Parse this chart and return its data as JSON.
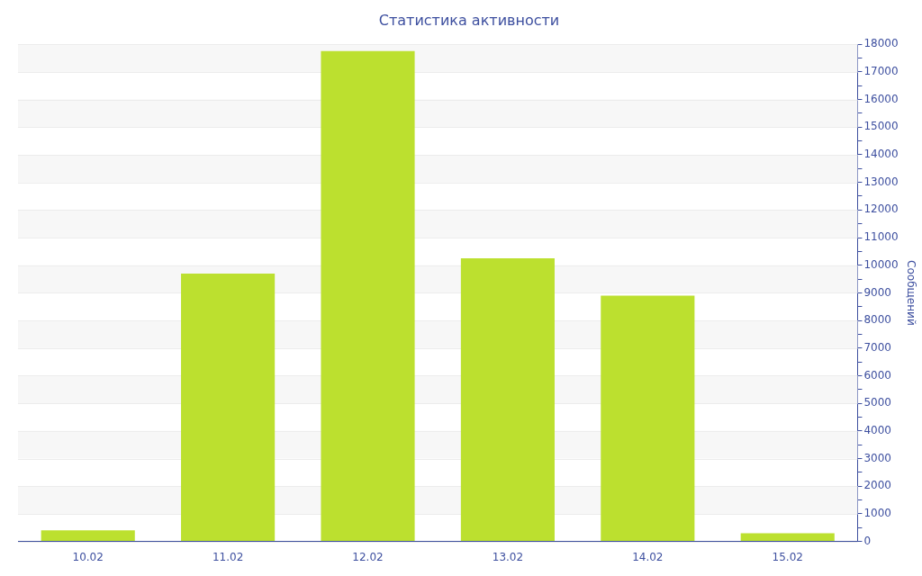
{
  "chart_data": {
    "type": "bar",
    "title": "Статистика активности",
    "ylabel": "Сообщений",
    "categories": [
      "10.02",
      "11.02",
      "12.02",
      "13.02",
      "14.02",
      "15.02"
    ],
    "values": [
      400,
      9700,
      17750,
      10250,
      8900,
      300
    ],
    "color": "#bce02f",
    "ylim": [
      0,
      18000
    ],
    "yticks": [
      0,
      {
        "value": 500,
        "label": null
      },
      1000,
      {
        "value": 1500,
        "label": null
      },
      2000,
      {
        "value": 2500,
        "label": null
      },
      3000,
      {
        "value": 3500,
        "label": null
      },
      4000,
      {
        "value": 4500,
        "label": null
      },
      5000,
      {
        "value": 5500,
        "label": null
      },
      6000,
      {
        "value": 6500,
        "label": null
      },
      7000,
      {
        "value": 7500,
        "label": null
      },
      8000,
      {
        "value": 8500,
        "label": null
      },
      9000,
      {
        "value": 9500,
        "label": null
      },
      10000,
      {
        "value": 10500,
        "label": null
      },
      11000,
      {
        "value": 11500,
        "label": null
      },
      12000,
      {
        "value": 12500,
        "label": null
      },
      13000,
      {
        "value": 13500,
        "label": null
      },
      14000,
      {
        "value": 14500,
        "label": null
      },
      15000,
      {
        "value": 15500,
        "label": null
      },
      16000,
      {
        "value": 16500,
        "label": null
      },
      17000,
      {
        "value": 17500,
        "label": null
      },
      18000
    ],
    "grid": "y"
  }
}
